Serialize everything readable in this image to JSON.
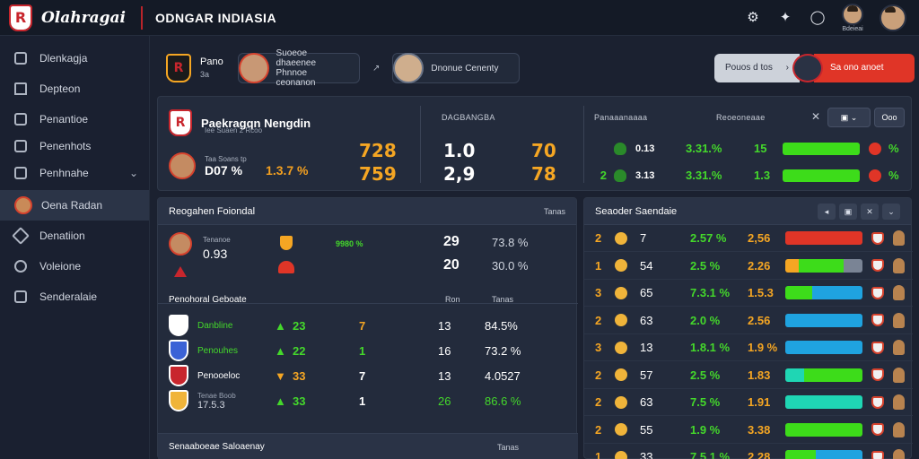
{
  "app": {
    "title": "Olahragai",
    "page_title": "ODNGAR INDIASIA"
  },
  "topbar": {
    "icons": [
      "settings-icon",
      "puzzle-icon",
      "chat-icon"
    ],
    "user_label": "Bdeieai"
  },
  "sidebar": {
    "items": [
      {
        "label": "Dlenkagja",
        "icon": "dashboard-icon"
      },
      {
        "label": "Depteon",
        "icon": "home-icon"
      },
      {
        "label": "Penantioe",
        "icon": "download-icon"
      },
      {
        "label": "Penenhots",
        "icon": "stats-icon"
      },
      {
        "label": "Penhnahe",
        "icon": "list-icon",
        "chevron": "⌄"
      },
      {
        "label": "Oena Radan",
        "icon": "avatar",
        "active": true
      },
      {
        "label": "Denatiion",
        "icon": "tools-icon"
      },
      {
        "label": "Voleione",
        "icon": "target-icon"
      },
      {
        "label": "Senderalaie",
        "icon": "people-icon"
      }
    ]
  },
  "matchbar": {
    "team_name": "Pano",
    "team_sub": "3a",
    "card1": "Suoeoe dhaeenee\nPhnnoe ceonanon",
    "card2": "Dnonue Cenenty",
    "seg_left": "Pouos d tos",
    "seg_right": "Sa ono anoet"
  },
  "summary": {
    "title": "Paekragqn Nengdin",
    "sub": "Iee Suaen 2 Rcoo",
    "player_small": "Taa Soans tp",
    "player_code": "D07 %",
    "player_pct": "1.3.7 %",
    "nums_orange": [
      "728",
      "759"
    ],
    "col2_head": "DAGBANGBA",
    "col2_vals": [
      "1.0",
      "2,9"
    ],
    "col2_orange": [
      "70",
      "78"
    ],
    "col3_head": "Panaaanaaaa",
    "col3_head2": "Reoeoneaae",
    "close": "✕",
    "chevron": "⌄",
    "btn": "Ooo",
    "kpis": [
      {
        "lead": "",
        "a": "0.13",
        "b": "3.31.%",
        "c": "15",
        "d": "%"
      },
      {
        "lead": "2",
        "a": "3.13",
        "b": "3.31.%",
        "c": "1.3",
        "d": "%"
      }
    ]
  },
  "left_panel": {
    "title": "Reogahen Foiondal",
    "right": "Tanas",
    "top_player_small": "Tenanoe",
    "top_player_code": "0.93",
    "top_green": "9980 %",
    "top_rows": [
      {
        "num": "29",
        "pct": "73.8 %"
      },
      {
        "num": "20",
        "pct": "30.0 %"
      }
    ],
    "section": "Penohoral Geboate",
    "section_col1": "Ron",
    "section_col2": "Tanas",
    "rows": [
      {
        "team": "Danbline",
        "sub": "",
        "val": "23",
        "n": "7",
        "m": "13",
        "pct": "84.5%",
        "shield": "#ffffff",
        "pct_color": "#ffffff",
        "name_color": "#44d82b"
      },
      {
        "team": "Penouhes",
        "sub": "",
        "val": "22",
        "n": "1",
        "m": "16",
        "pct": "73.2 %",
        "shield": "#3b62d6",
        "pct_color": "#ffffff",
        "name_color": "#44d82b"
      },
      {
        "team": "Penooeloc",
        "sub": "",
        "val": "33",
        "n": "7",
        "m": "13",
        "pct": "4.0527",
        "shield": "#c8262d",
        "pct_color": "#ffffff",
        "name_color": "#ffffff"
      },
      {
        "team": "Tenae Boob",
        "sub": "17.5.3",
        "val": "33",
        "n": "1",
        "m": "26",
        "pct": "86.6 %",
        "shield": "#f0b43a",
        "pct_color": "#44d82b",
        "name_color": "#9aa3b3"
      }
    ],
    "footer_title": "Senaaboeae Saloaenay",
    "footer_right": "Tanas"
  },
  "right_panel": {
    "title": "Seaoder Saendaie",
    "rows": [
      {
        "rank": "2",
        "n": "7",
        "pct": "2.57 %",
        "val": "2,56",
        "bar": [
          {
            "w": 100,
            "c": "#e03527"
          }
        ]
      },
      {
        "rank": "1",
        "n": "54",
        "pct": "2.5 %",
        "val": "2.26",
        "bar": [
          {
            "w": 18,
            "c": "#f5a623"
          },
          {
            "w": 58,
            "c": "#3ddc1a"
          },
          {
            "w": 24,
            "c": "#7a8495"
          }
        ]
      },
      {
        "rank": "3",
        "n": "65",
        "pct": "7.3.1 %",
        "val": "1.5.3",
        "bar": [
          {
            "w": 35,
            "c": "#3ddc1a"
          },
          {
            "w": 65,
            "c": "#1fa3e0"
          }
        ]
      },
      {
        "rank": "2",
        "n": "63",
        "pct": "2.0 %",
        "val": "2.56",
        "bar": [
          {
            "w": 100,
            "c": "#1fa3e0"
          }
        ]
      },
      {
        "rank": "3",
        "n": "13",
        "pct": "1.8.1 %",
        "val": "1.9 %",
        "bar": [
          {
            "w": 45,
            "c": "#1fa3e0"
          },
          {
            "w": 55,
            "c": "#1fa3e0"
          }
        ]
      },
      {
        "rank": "2",
        "n": "57",
        "pct": "2.5 %",
        "val": "1.83",
        "bar": [
          {
            "w": 24,
            "c": "#1fd6b4"
          },
          {
            "w": 76,
            "c": "#3ddc1a"
          }
        ]
      },
      {
        "rank": "2",
        "n": "63",
        "pct": "7.5 %",
        "val": "1.91",
        "bar": [
          {
            "w": 100,
            "c": "#1fd6b4"
          }
        ]
      },
      {
        "rank": "2",
        "n": "55",
        "pct": "1.9 %",
        "val": "3.38",
        "bar": [
          {
            "w": 100,
            "c": "#3ddc1a"
          }
        ]
      },
      {
        "rank": "1",
        "n": "33",
        "pct": "7.5.1 %",
        "val": "2.28",
        "bar": [
          {
            "w": 40,
            "c": "#3ddc1a"
          },
          {
            "w": 60,
            "c": "#1fa3e0"
          }
        ]
      }
    ]
  },
  "colors": {
    "accent_red": "#e03527",
    "green": "#44d82b",
    "orange": "#f5a623",
    "bg": "#1b2130"
  }
}
